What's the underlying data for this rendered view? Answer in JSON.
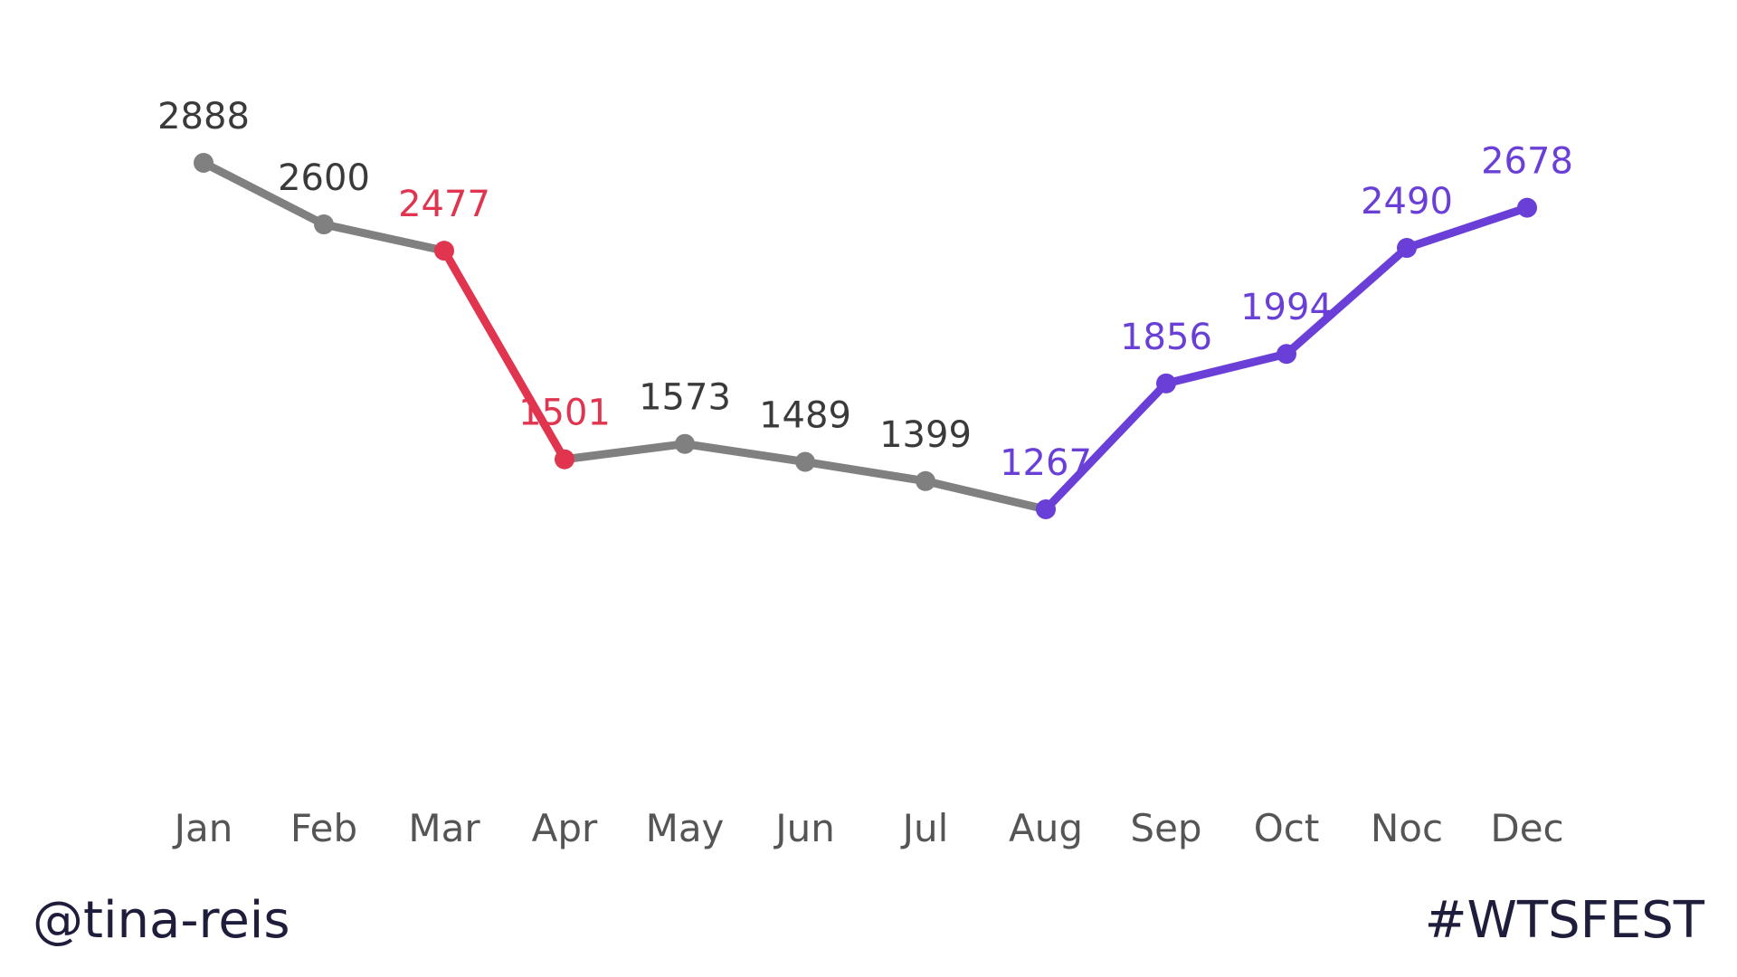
{
  "footer": {
    "handle": "@tina-reis",
    "hashtag": "#WTSFEST"
  },
  "colors": {
    "default": "#808080",
    "decline": "#e0344f",
    "growth": "#6a3fd8",
    "label_default": "#3a3a3a",
    "axis_text": "#555555",
    "footer_text": "#1f1d3c"
  },
  "chart_data": {
    "type": "line",
    "categories": [
      "Jan",
      "Feb",
      "Mar",
      "Apr",
      "May",
      "Jun",
      "Jul",
      "Aug",
      "Sep",
      "Oct",
      "Noc",
      "Dec"
    ],
    "series": [
      {
        "values": [
          2888,
          2600,
          2477,
          1501,
          1573,
          1489,
          1399,
          1267,
          1856,
          1994,
          2490,
          2678
        ]
      }
    ],
    "data_labels": [
      "2888",
      "2600",
      "2477",
      "1501",
      "1573",
      "1489",
      "1399",
      "1267",
      "1856",
      "1994",
      "2490",
      "2678"
    ],
    "segment_colors": [
      "default",
      "default",
      "decline",
      "default",
      "default",
      "default",
      "default",
      "growth",
      "growth",
      "growth",
      "growth"
    ],
    "label_colors": [
      "label_default",
      "label_default",
      "decline",
      "decline",
      "label_default",
      "label_default",
      "label_default",
      "growth",
      "growth",
      "growth",
      "growth",
      "growth"
    ],
    "title": "",
    "xlabel": "",
    "ylabel": "",
    "grid": false,
    "legend": "none"
  }
}
